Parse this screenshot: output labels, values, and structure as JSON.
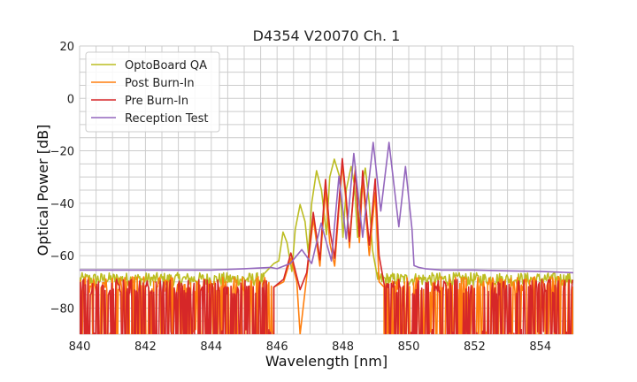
{
  "chart_data": {
    "type": "line",
    "title": "D4354 V20070 Ch. 1",
    "xlabel": "Wavelength [nm]",
    "ylabel": "Optical Power [dB]",
    "xlim": [
      840,
      855
    ],
    "ylim": [
      -90,
      20
    ],
    "xticks": [
      840,
      842,
      844,
      846,
      848,
      850,
      852,
      854
    ],
    "yticks": [
      -80,
      -60,
      -40,
      -20,
      0,
      20
    ],
    "grid": true,
    "grid_minor_x": 0.5,
    "grid_minor_y": 5,
    "legend_placement": "top-left",
    "series": [
      {
        "name": "OptoBoard QA",
        "color": "#bcbd22",
        "x": [
          845.6,
          845.9,
          846.05,
          846.18,
          846.3,
          846.45,
          846.55,
          846.7,
          846.85,
          846.95,
          847.05,
          847.2,
          847.35,
          847.5,
          847.6,
          847.74,
          847.9,
          848.0,
          848.1,
          848.25,
          848.35,
          848.45,
          848.55,
          848.68,
          848.8,
          848.9,
          849.06
        ],
        "y": [
          -67,
          -63,
          -62,
          -51,
          -55,
          -66,
          -50,
          -40.5,
          -47,
          -59,
          -40,
          -27.6,
          -35,
          -52,
          -30,
          -23.2,
          -30,
          -53,
          -35,
          -26,
          -33,
          -53,
          -35,
          -26.6,
          -40,
          -58,
          -69
        ],
        "noise": {
          "ranges": [
            [
              840,
              845.6
            ],
            [
              849.06,
              855
            ]
          ],
          "floor": -69,
          "amplitude": 2.5,
          "mode": "band"
        }
      },
      {
        "name": "Post Burn-In",
        "color": "#ff7f0e",
        "x": [
          845.9,
          846.2,
          846.42,
          846.6,
          846.7,
          846.9,
          847.1,
          847.3,
          847.47,
          847.6,
          847.75,
          847.98,
          848.1,
          848.2,
          848.38,
          848.5,
          848.6,
          848.8,
          848.98,
          849.1,
          849.25
        ],
        "y": [
          -72,
          -70,
          -61,
          -70,
          -90,
          -68,
          -46,
          -64,
          -35,
          -55,
          -64,
          -25,
          -40,
          -57,
          -26,
          -55,
          -31,
          -60,
          -36,
          -70,
          -72
        ],
        "noise": {
          "ranges": [
            [
              840,
              845.9
            ],
            [
              849.25,
              855
            ]
          ],
          "floor": -71,
          "amplitude": 3,
          "mode": "spikes"
        }
      },
      {
        "name": "Pre Burn-In",
        "color": "#d62728",
        "x": [
          845.9,
          846.2,
          846.42,
          846.6,
          846.7,
          846.9,
          847.1,
          847.3,
          847.47,
          847.6,
          847.75,
          847.98,
          848.1,
          848.2,
          848.38,
          848.5,
          848.6,
          848.8,
          848.98,
          849.1,
          849.27
        ],
        "y": [
          -72,
          -69,
          -59,
          -68,
          -73,
          -66.5,
          -43.5,
          -61.6,
          -31,
          -50,
          -61,
          -23,
          -38,
          -54.7,
          -27.6,
          -52.6,
          -27.6,
          -56,
          -30.7,
          -60,
          -72
        ],
        "noise": {
          "ranges": [
            [
              840,
              845.9
            ],
            [
              849.27,
              855
            ]
          ],
          "floor": -72,
          "amplitude": 3,
          "mode": "spikes"
        }
      },
      {
        "name": "Reception Test",
        "color": "#9467bd",
        "x": [
          840,
          842,
          844,
          845,
          845.8,
          846.0,
          846.4,
          846.75,
          847.05,
          847.34,
          847.65,
          847.88,
          848.1,
          848.33,
          848.6,
          848.92,
          849.15,
          849.4,
          849.7,
          849.9,
          850.1,
          850.16,
          850.3,
          850.5,
          851,
          852,
          853,
          854,
          855
        ],
        "y": [
          -65.5,
          -65.5,
          -65.5,
          -65,
          -64.5,
          -65,
          -63,
          -57.7,
          -63,
          -47.6,
          -62,
          -29.7,
          -53.6,
          -21,
          -53,
          -16.8,
          -43,
          -16.8,
          -49,
          -26,
          -50,
          -63.8,
          -64.5,
          -65,
          -65.5,
          -65.5,
          -65.8,
          -66,
          -66.5
        ]
      }
    ]
  }
}
